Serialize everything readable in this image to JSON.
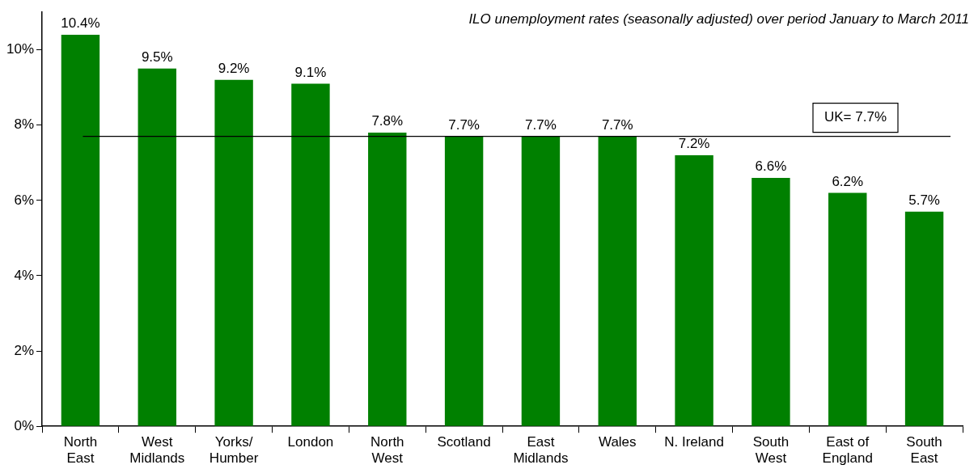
{
  "chart_data": {
    "type": "bar",
    "annotations": [
      "ILO unemployment rates (seasonally adjusted) over period January to March 2011"
    ],
    "categories": [
      "North\nEast",
      "West\nMidlands",
      "Yorks/\nHumber",
      "London",
      "North\nWest",
      "Scotland",
      "East\nMidlands",
      "Wales",
      "N. Ireland",
      "South\nWest",
      "East of\nEngland",
      "South\nEast"
    ],
    "values": [
      10.4,
      9.5,
      9.2,
      9.1,
      7.8,
      7.7,
      7.7,
      7.7,
      7.2,
      6.6,
      6.2,
      5.7
    ],
    "color": "#008000",
    "ylim": [
      0,
      11
    ],
    "yticks": [
      {
        "value": 0,
        "label": "0%"
      },
      {
        "value": 2,
        "label": "2%"
      },
      {
        "value": 4,
        "label": "4%"
      },
      {
        "value": 6,
        "label": "6%"
      },
      {
        "value": 8,
        "label": "8%"
      },
      {
        "value": 10,
        "label": "10%"
      }
    ],
    "value_labels": [
      "10.4%",
      "9.5%",
      "9.2%",
      "9.1%",
      "7.8%",
      "7.7%",
      "7.7%",
      "7.7%",
      "7.2%",
      "6.6%",
      "6.2%",
      "5.7%"
    ],
    "ref_lines": [
      {
        "axis": "y",
        "value": 7.7,
        "label": "UK= 7.7%",
        "color": "#000000"
      }
    ],
    "grid": false,
    "legend": false
  }
}
